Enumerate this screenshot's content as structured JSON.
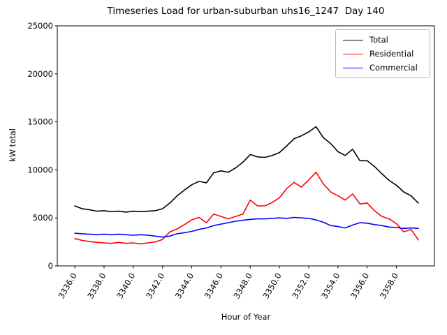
{
  "figure": {
    "title": "Timeseries Load for urban-suburban uhs16_1247  Day 140",
    "xlabel": "Hour of Year",
    "ylabel": "kW total"
  },
  "legend": {
    "position": "upper right",
    "items": [
      {
        "label": "Total",
        "color": "#000000"
      },
      {
        "label": "Residential",
        "color": "#ff0000"
      },
      {
        "label": "Commercial",
        "color": "#0000ff"
      }
    ]
  },
  "chart_data": {
    "type": "line",
    "title": "Timeseries Load for urban-suburban uhs16_1247  Day 140",
    "xlabel": "Hour of Year",
    "ylabel": "kW total",
    "grid": false,
    "legend_position": "upper right",
    "xlim": [
      3334.8,
      3360.6
    ],
    "ylim": [
      0,
      25000
    ],
    "xticks": [
      3336,
      3338,
      3340,
      3342,
      3344,
      3346,
      3348,
      3350,
      3352,
      3354,
      3356,
      3358
    ],
    "xtick_labels": [
      "3336.0",
      "3338.0",
      "3340.0",
      "3342.0",
      "3344.0",
      "3346.0",
      "3348.0",
      "3350.0",
      "3352.0",
      "3354.0",
      "3356.0",
      "3358.0"
    ],
    "yticks": [
      0,
      5000,
      10000,
      15000,
      20000,
      25000
    ],
    "ytick_labels": [
      "0",
      "5000",
      "10000",
      "15000",
      "20000",
      "25000"
    ],
    "x": [
      3336.0,
      3336.5,
      3337.0,
      3337.5,
      3338.0,
      3338.5,
      3339.0,
      3339.5,
      3340.0,
      3340.5,
      3341.0,
      3341.5,
      3342.0,
      3342.5,
      3343.0,
      3343.5,
      3344.0,
      3344.5,
      3345.0,
      3345.5,
      3346.0,
      3346.5,
      3347.0,
      3347.5,
      3348.0,
      3348.5,
      3349.0,
      3349.5,
      3350.0,
      3350.5,
      3351.0,
      3351.5,
      3352.0,
      3352.5,
      3353.0,
      3353.5,
      3354.0,
      3354.5,
      3355.0,
      3355.5,
      3356.0,
      3356.5,
      3357.0,
      3357.5,
      3358.0,
      3358.5,
      3359.0,
      3359.5
    ],
    "series": [
      {
        "name": "Total",
        "color": "#000000",
        "values": [
          6250,
          5950,
          5850,
          5700,
          5750,
          5650,
          5700,
          5600,
          5700,
          5650,
          5700,
          5750,
          5950,
          6550,
          7300,
          7900,
          8450,
          8800,
          8650,
          9700,
          9900,
          9750,
          10200,
          10800,
          11600,
          11350,
          11300,
          11500,
          11800,
          12500,
          13250,
          13550,
          13950,
          14500,
          13350,
          12750,
          11900,
          11500,
          12150,
          10950,
          10950,
          10350,
          9600,
          8900,
          8400,
          7700,
          7300,
          6550
        ]
      },
      {
        "name": "Residential",
        "color": "#ff0000",
        "values": [
          2850,
          2650,
          2550,
          2450,
          2400,
          2350,
          2450,
          2350,
          2400,
          2300,
          2400,
          2500,
          2750,
          3550,
          3850,
          4300,
          4800,
          5050,
          4500,
          5400,
          5150,
          4900,
          5150,
          5400,
          6850,
          6250,
          6250,
          6600,
          7100,
          8050,
          8700,
          8200,
          8950,
          9750,
          8550,
          7700,
          7300,
          6850,
          7500,
          6450,
          6550,
          5750,
          5150,
          4900,
          4400,
          3550,
          3800,
          2700
        ]
      },
      {
        "name": "Commercial",
        "color": "#0000ff",
        "values": [
          3400,
          3350,
          3300,
          3250,
          3300,
          3250,
          3300,
          3250,
          3200,
          3250,
          3200,
          3100,
          3000,
          3100,
          3350,
          3450,
          3600,
          3800,
          3950,
          4200,
          4350,
          4500,
          4650,
          4750,
          4850,
          4900,
          4900,
          4950,
          5000,
          4950,
          5050,
          5000,
          4950,
          4800,
          4550,
          4200,
          4100,
          3950,
          4250,
          4500,
          4450,
          4300,
          4200,
          4050,
          4000,
          3900,
          3950,
          3900
        ]
      }
    ]
  }
}
